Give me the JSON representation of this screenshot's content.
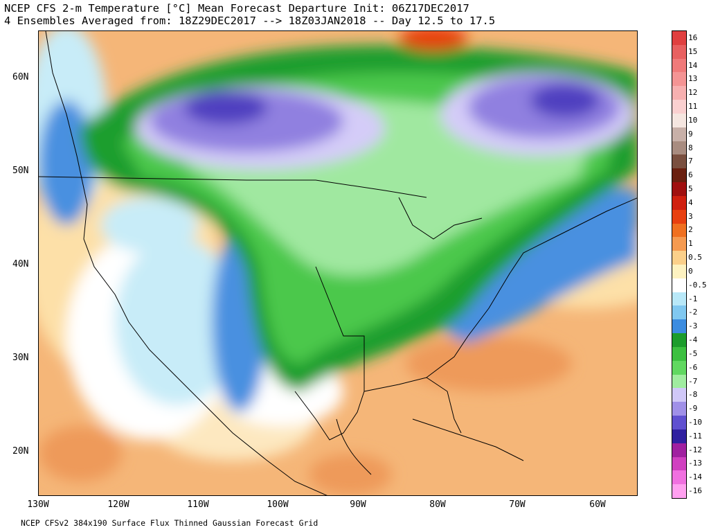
{
  "header": {
    "title_line1": "NCEP CFS 2-m Temperature [°C] Mean Forecast Departure Init: 06Z17DEC2017",
    "title_line2": "4 Ensembles Averaged from: 18Z29DEC2017 --> 18Z03JAN2018 -- Day 12.5 to 17.5"
  },
  "footer": "NCEP CFSv2 384x190 Surface Flux Thinned Gaussian Forecast Grid",
  "axes": {
    "lat_labels": [
      "60N",
      "50N",
      "40N",
      "30N",
      "20N"
    ],
    "lon_labels": [
      "130W",
      "120W",
      "110W",
      "100W",
      "90W",
      "80W",
      "70W",
      "60W"
    ]
  },
  "legend": {
    "labels": [
      "16",
      "15",
      "14",
      "13",
      "12",
      "11",
      "10",
      "9",
      "8",
      "7",
      "6",
      "5",
      "4",
      "3",
      "2",
      "1",
      "0.5",
      "0",
      "-0.5",
      "-1",
      "-2",
      "-3",
      "-4",
      "-5",
      "-6",
      "-7",
      "-8",
      "-9",
      "-10",
      "-11",
      "-12",
      "-13",
      "-14",
      "-16"
    ],
    "colors": [
      "#e04040",
      "#e86060",
      "#f07a7a",
      "#f49494",
      "#f7b0b0",
      "#fad0d0",
      "#f5e6e0",
      "#c8b0a8",
      "#a88c80",
      "#7a5040",
      "#6a2010",
      "#a01010",
      "#d02010",
      "#e84010",
      "#f07020",
      "#f59a50",
      "#fbd08a",
      "#fdf2c0",
      "#ffffff",
      "#b8e8f8",
      "#80c8f0",
      "#3c8ce0",
      "#1c9c2c",
      "#3cc040",
      "#60d860",
      "#a0eca0",
      "#d0c8f8",
      "#a090e8",
      "#6050d0",
      "#3020a0",
      "#a020a0",
      "#d040c0",
      "#f070e0",
      "#ffa0f0"
    ]
  },
  "colors": {
    "warm_ocean": "#f5b678",
    "warm_light": "#fde0a8",
    "near_zero": "#ffffff",
    "cool_light": "#c8ecf8",
    "cool": "#4a90e0",
    "green_dark": "#1e9e2e",
    "green": "#4cc84c",
    "green_light": "#a0e8a0",
    "purple_light": "#d4ccf8",
    "purple": "#9080e0",
    "purple_dark": "#5040c0"
  }
}
